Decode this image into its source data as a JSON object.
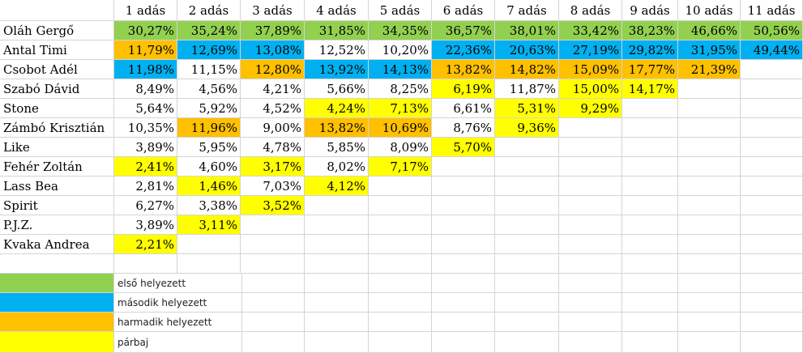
{
  "colors": {
    "first": "#92d050",
    "second": "#00b0f0",
    "third": "#ffc000",
    "duel": "#ffff00"
  },
  "header": [
    "1 adás",
    "2 adás",
    "3 adás",
    "4 adás",
    "5 adás",
    "6 adás",
    "7 adás",
    "8 adás",
    "9 adás",
    "10 adás",
    "11 adás"
  ],
  "rows": [
    {
      "name": "Oláh Gergő",
      "cells": [
        {
          "v": "30,27%",
          "c": "first"
        },
        {
          "v": "35,24%",
          "c": "first"
        },
        {
          "v": "37,89%",
          "c": "first"
        },
        {
          "v": "31,85%",
          "c": "first"
        },
        {
          "v": "34,35%",
          "c": "first"
        },
        {
          "v": "36,57%",
          "c": "first"
        },
        {
          "v": "38,01%",
          "c": "first"
        },
        {
          "v": "33,42%",
          "c": "first"
        },
        {
          "v": "38,23%",
          "c": "first"
        },
        {
          "v": "46,66%",
          "c": "first"
        },
        {
          "v": "50,56%",
          "c": "first"
        }
      ]
    },
    {
      "name": "Antal Timi",
      "cells": [
        {
          "v": "11,79%",
          "c": "third"
        },
        {
          "v": "12,69%",
          "c": "second"
        },
        {
          "v": "13,08%",
          "c": "second"
        },
        {
          "v": "12,52%",
          "c": ""
        },
        {
          "v": "10,20%",
          "c": ""
        },
        {
          "v": "22,36%",
          "c": "second"
        },
        {
          "v": "20,63%",
          "c": "second"
        },
        {
          "v": "27,19%",
          "c": "second"
        },
        {
          "v": "29,82%",
          "c": "second"
        },
        {
          "v": "31,95%",
          "c": "second"
        },
        {
          "v": "49,44%",
          "c": "second"
        }
      ]
    },
    {
      "name": "Csobot Adél",
      "cells": [
        {
          "v": "11,98%",
          "c": "second"
        },
        {
          "v": "11,15%",
          "c": ""
        },
        {
          "v": "12,80%",
          "c": "third"
        },
        {
          "v": "13,92%",
          "c": "second"
        },
        {
          "v": "14,13%",
          "c": "second"
        },
        {
          "v": "13,82%",
          "c": "third"
        },
        {
          "v": "14,82%",
          "c": "third"
        },
        {
          "v": "15,09%",
          "c": "third"
        },
        {
          "v": "17,77%",
          "c": "third"
        },
        {
          "v": "21,39%",
          "c": "third"
        },
        {
          "v": "",
          "c": ""
        }
      ]
    },
    {
      "name": "Szabó Dávid",
      "cells": [
        {
          "v": "8,49%",
          "c": ""
        },
        {
          "v": "4,56%",
          "c": ""
        },
        {
          "v": "4,21%",
          "c": ""
        },
        {
          "v": "5,66%",
          "c": ""
        },
        {
          "v": "8,25%",
          "c": ""
        },
        {
          "v": "6,19%",
          "c": "duel"
        },
        {
          "v": "11,87%",
          "c": ""
        },
        {
          "v": "15,00%",
          "c": "duel"
        },
        {
          "v": "14,17%",
          "c": "duel"
        },
        {
          "v": "",
          "c": ""
        },
        {
          "v": "",
          "c": ""
        }
      ]
    },
    {
      "name": "Stone",
      "cells": [
        {
          "v": "5,64%",
          "c": ""
        },
        {
          "v": "5,92%",
          "c": ""
        },
        {
          "v": "4,52%",
          "c": ""
        },
        {
          "v": "4,24%",
          "c": "duel"
        },
        {
          "v": "7,13%",
          "c": "duel"
        },
        {
          "v": "6,61%",
          "c": ""
        },
        {
          "v": "5,31%",
          "c": "duel"
        },
        {
          "v": "9,29%",
          "c": "duel"
        },
        {
          "v": "",
          "c": ""
        },
        {
          "v": "",
          "c": ""
        },
        {
          "v": "",
          "c": ""
        }
      ]
    },
    {
      "name": "Zámbó Krisztián",
      "cells": [
        {
          "v": "10,35%",
          "c": ""
        },
        {
          "v": "11,96%",
          "c": "third"
        },
        {
          "v": "9,00%",
          "c": ""
        },
        {
          "v": "13,82%",
          "c": "third"
        },
        {
          "v": "10,69%",
          "c": "third"
        },
        {
          "v": "8,76%",
          "c": ""
        },
        {
          "v": "9,36%",
          "c": "duel"
        },
        {
          "v": "",
          "c": ""
        },
        {
          "v": "",
          "c": ""
        },
        {
          "v": "",
          "c": ""
        },
        {
          "v": "",
          "c": ""
        }
      ]
    },
    {
      "name": "Like",
      "cells": [
        {
          "v": "3,89%",
          "c": ""
        },
        {
          "v": "5,95%",
          "c": ""
        },
        {
          "v": "4,78%",
          "c": ""
        },
        {
          "v": "5,85%",
          "c": ""
        },
        {
          "v": "8,09%",
          "c": ""
        },
        {
          "v": "5,70%",
          "c": "duel"
        },
        {
          "v": "",
          "c": ""
        },
        {
          "v": "",
          "c": ""
        },
        {
          "v": "",
          "c": ""
        },
        {
          "v": "",
          "c": ""
        },
        {
          "v": "",
          "c": ""
        }
      ]
    },
    {
      "name": "Fehér Zoltán",
      "cells": [
        {
          "v": "2,41%",
          "c": "duel"
        },
        {
          "v": "4,60%",
          "c": ""
        },
        {
          "v": "3,17%",
          "c": "duel"
        },
        {
          "v": "8,02%",
          "c": ""
        },
        {
          "v": "7,17%",
          "c": "duel"
        },
        {
          "v": "",
          "c": ""
        },
        {
          "v": "",
          "c": ""
        },
        {
          "v": "",
          "c": ""
        },
        {
          "v": "",
          "c": ""
        },
        {
          "v": "",
          "c": ""
        },
        {
          "v": "",
          "c": ""
        }
      ]
    },
    {
      "name": "Lass Bea",
      "cells": [
        {
          "v": "2,81%",
          "c": ""
        },
        {
          "v": "1,46%",
          "c": "duel"
        },
        {
          "v": "7,03%",
          "c": ""
        },
        {
          "v": "4,12%",
          "c": "duel"
        },
        {
          "v": "",
          "c": ""
        },
        {
          "v": "",
          "c": ""
        },
        {
          "v": "",
          "c": ""
        },
        {
          "v": "",
          "c": ""
        },
        {
          "v": "",
          "c": ""
        },
        {
          "v": "",
          "c": ""
        },
        {
          "v": "",
          "c": ""
        }
      ]
    },
    {
      "name": "Spirit",
      "cells": [
        {
          "v": "6,27%",
          "c": ""
        },
        {
          "v": "3,38%",
          "c": ""
        },
        {
          "v": "3,52%",
          "c": "duel"
        },
        {
          "v": "",
          "c": ""
        },
        {
          "v": "",
          "c": ""
        },
        {
          "v": "",
          "c": ""
        },
        {
          "v": "",
          "c": ""
        },
        {
          "v": "",
          "c": ""
        },
        {
          "v": "",
          "c": ""
        },
        {
          "v": "",
          "c": ""
        },
        {
          "v": "",
          "c": ""
        }
      ]
    },
    {
      "name": "P.J.Z.",
      "cells": [
        {
          "v": "3,89%",
          "c": ""
        },
        {
          "v": "3,11%",
          "c": "duel"
        },
        {
          "v": "",
          "c": ""
        },
        {
          "v": "",
          "c": ""
        },
        {
          "v": "",
          "c": ""
        },
        {
          "v": "",
          "c": ""
        },
        {
          "v": "",
          "c": ""
        },
        {
          "v": "",
          "c": ""
        },
        {
          "v": "",
          "c": ""
        },
        {
          "v": "",
          "c": ""
        },
        {
          "v": "",
          "c": ""
        }
      ]
    },
    {
      "name": "Kvaka Andrea",
      "cells": [
        {
          "v": "2,21%",
          "c": "duel"
        },
        {
          "v": "",
          "c": ""
        },
        {
          "v": "",
          "c": ""
        },
        {
          "v": "",
          "c": ""
        },
        {
          "v": "",
          "c": ""
        },
        {
          "v": "",
          "c": ""
        },
        {
          "v": "",
          "c": ""
        },
        {
          "v": "",
          "c": ""
        },
        {
          "v": "",
          "c": ""
        },
        {
          "v": "",
          "c": ""
        },
        {
          "v": "",
          "c": ""
        }
      ]
    }
  ],
  "legend": [
    {
      "label": "első helyezett",
      "c": "first"
    },
    {
      "label": "második helyezett",
      "c": "second"
    },
    {
      "label": "harmadik helyezett",
      "c": "third"
    },
    {
      "label": "párbaj",
      "c": "duel"
    }
  ]
}
